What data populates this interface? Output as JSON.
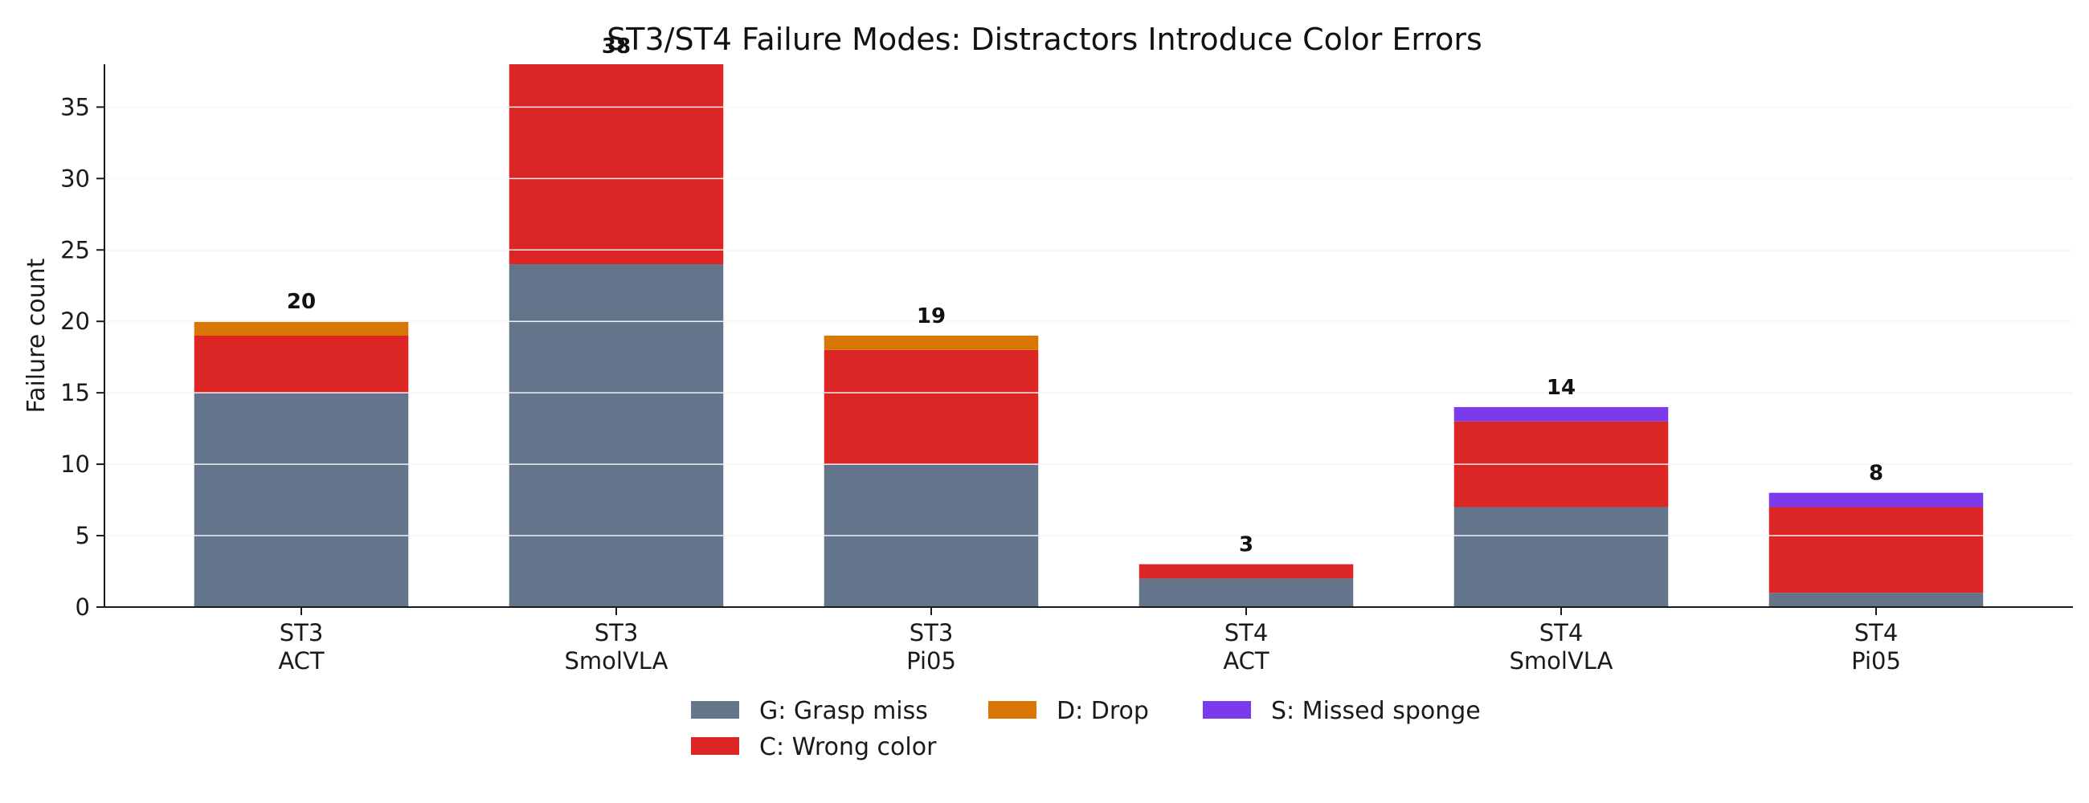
{
  "chart_data": {
    "type": "bar",
    "stacked": true,
    "title": "ST3/ST4 Failure Modes: Distractors Introduce Color Errors",
    "xlabel": "",
    "ylabel": "Failure count",
    "ylim": [
      0,
      38
    ],
    "yticks": [
      "0",
      "5",
      "10",
      "15",
      "20",
      "25",
      "30",
      "35"
    ],
    "grid": "horizontal",
    "legend_position": "bottom-center",
    "categories": [
      [
        "ST3",
        "ACT"
      ],
      [
        "ST3",
        "SmolVLA"
      ],
      [
        "ST3",
        "Pi05"
      ],
      [
        "ST4",
        "ACT"
      ],
      [
        "ST4",
        "SmolVLA"
      ],
      [
        "ST4",
        "Pi05"
      ]
    ],
    "totals": [
      "20",
      "38",
      "19",
      "3",
      "14",
      "8"
    ],
    "series": [
      {
        "name": "G: Grasp miss",
        "color": "#64748b",
        "values": [
          15,
          24,
          10,
          2,
          7,
          1
        ]
      },
      {
        "name": "C: Wrong color",
        "color": "#dc2626",
        "values": [
          4,
          14,
          8,
          1,
          6,
          6
        ]
      },
      {
        "name": "D: Drop",
        "color": "#d97706",
        "values": [
          1,
          0,
          1,
          0,
          0,
          0
        ]
      },
      {
        "name": "S: Missed sponge",
        "color": "#7c3aed",
        "values": [
          0,
          0,
          0,
          0,
          1,
          1
        ]
      }
    ]
  }
}
